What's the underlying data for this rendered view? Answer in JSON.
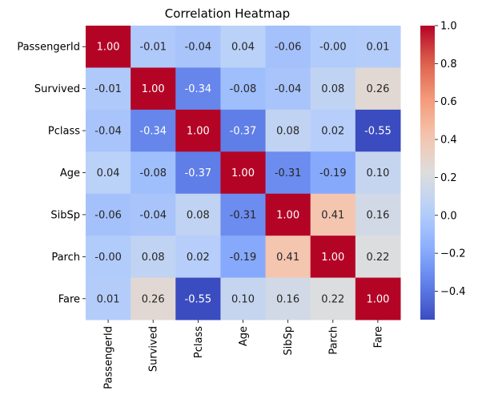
{
  "chart_data": {
    "type": "heatmap",
    "title": "Correlation Heatmap",
    "row_labels": [
      "PassengerId",
      "Survived",
      "Pclass",
      "Age",
      "SibSp",
      "Parch",
      "Fare"
    ],
    "col_labels": [
      "PassengerId",
      "Survived",
      "Pclass",
      "Age",
      "SibSp",
      "Parch",
      "Fare"
    ],
    "values": [
      [
        1.0,
        -0.01,
        -0.04,
        0.04,
        -0.06,
        -0.0,
        0.01
      ],
      [
        -0.01,
        1.0,
        -0.34,
        -0.08,
        -0.04,
        0.08,
        0.26
      ],
      [
        -0.04,
        -0.34,
        1.0,
        -0.37,
        0.08,
        0.02,
        -0.55
      ],
      [
        0.04,
        -0.08,
        -0.37,
        1.0,
        -0.31,
        -0.19,
        0.1
      ],
      [
        -0.06,
        -0.04,
        0.08,
        -0.31,
        1.0,
        0.41,
        0.16
      ],
      [
        -0.0,
        0.08,
        0.02,
        -0.19,
        0.41,
        1.0,
        0.22
      ],
      [
        0.01,
        0.26,
        -0.55,
        0.1,
        0.16,
        0.22,
        1.0
      ]
    ],
    "cell_text": [
      [
        "1.00",
        "-0.01",
        "-0.04",
        "0.04",
        "-0.06",
        "-0.00",
        "0.01"
      ],
      [
        "-0.01",
        "1.00",
        "-0.34",
        "-0.08",
        "-0.04",
        "0.08",
        "0.26"
      ],
      [
        "-0.04",
        "-0.34",
        "1.00",
        "-0.37",
        "0.08",
        "0.02",
        "-0.55"
      ],
      [
        "0.04",
        "-0.08",
        "-0.37",
        "1.00",
        "-0.31",
        "-0.19",
        "0.10"
      ],
      [
        "-0.06",
        "-0.04",
        "0.08",
        "-0.31",
        "1.00",
        "0.41",
        "0.16"
      ],
      [
        "-0.00",
        "0.08",
        "0.02",
        "-0.19",
        "0.41",
        "1.00",
        "0.22"
      ],
      [
        "0.01",
        "0.26",
        "-0.55",
        "0.10",
        "0.16",
        "0.22",
        "1.00"
      ]
    ],
    "colormap": "coolwarm",
    "colorbar": {
      "range": [
        -0.55,
        1.0
      ],
      "ticks": [
        -0.4,
        -0.2,
        0.0,
        0.2,
        0.4,
        0.6,
        0.8,
        1.0
      ],
      "tick_labels": [
        "−0.4",
        "−0.2",
        "0.0",
        "0.2",
        "0.4",
        "0.6",
        "0.8",
        "1.0"
      ]
    }
  }
}
